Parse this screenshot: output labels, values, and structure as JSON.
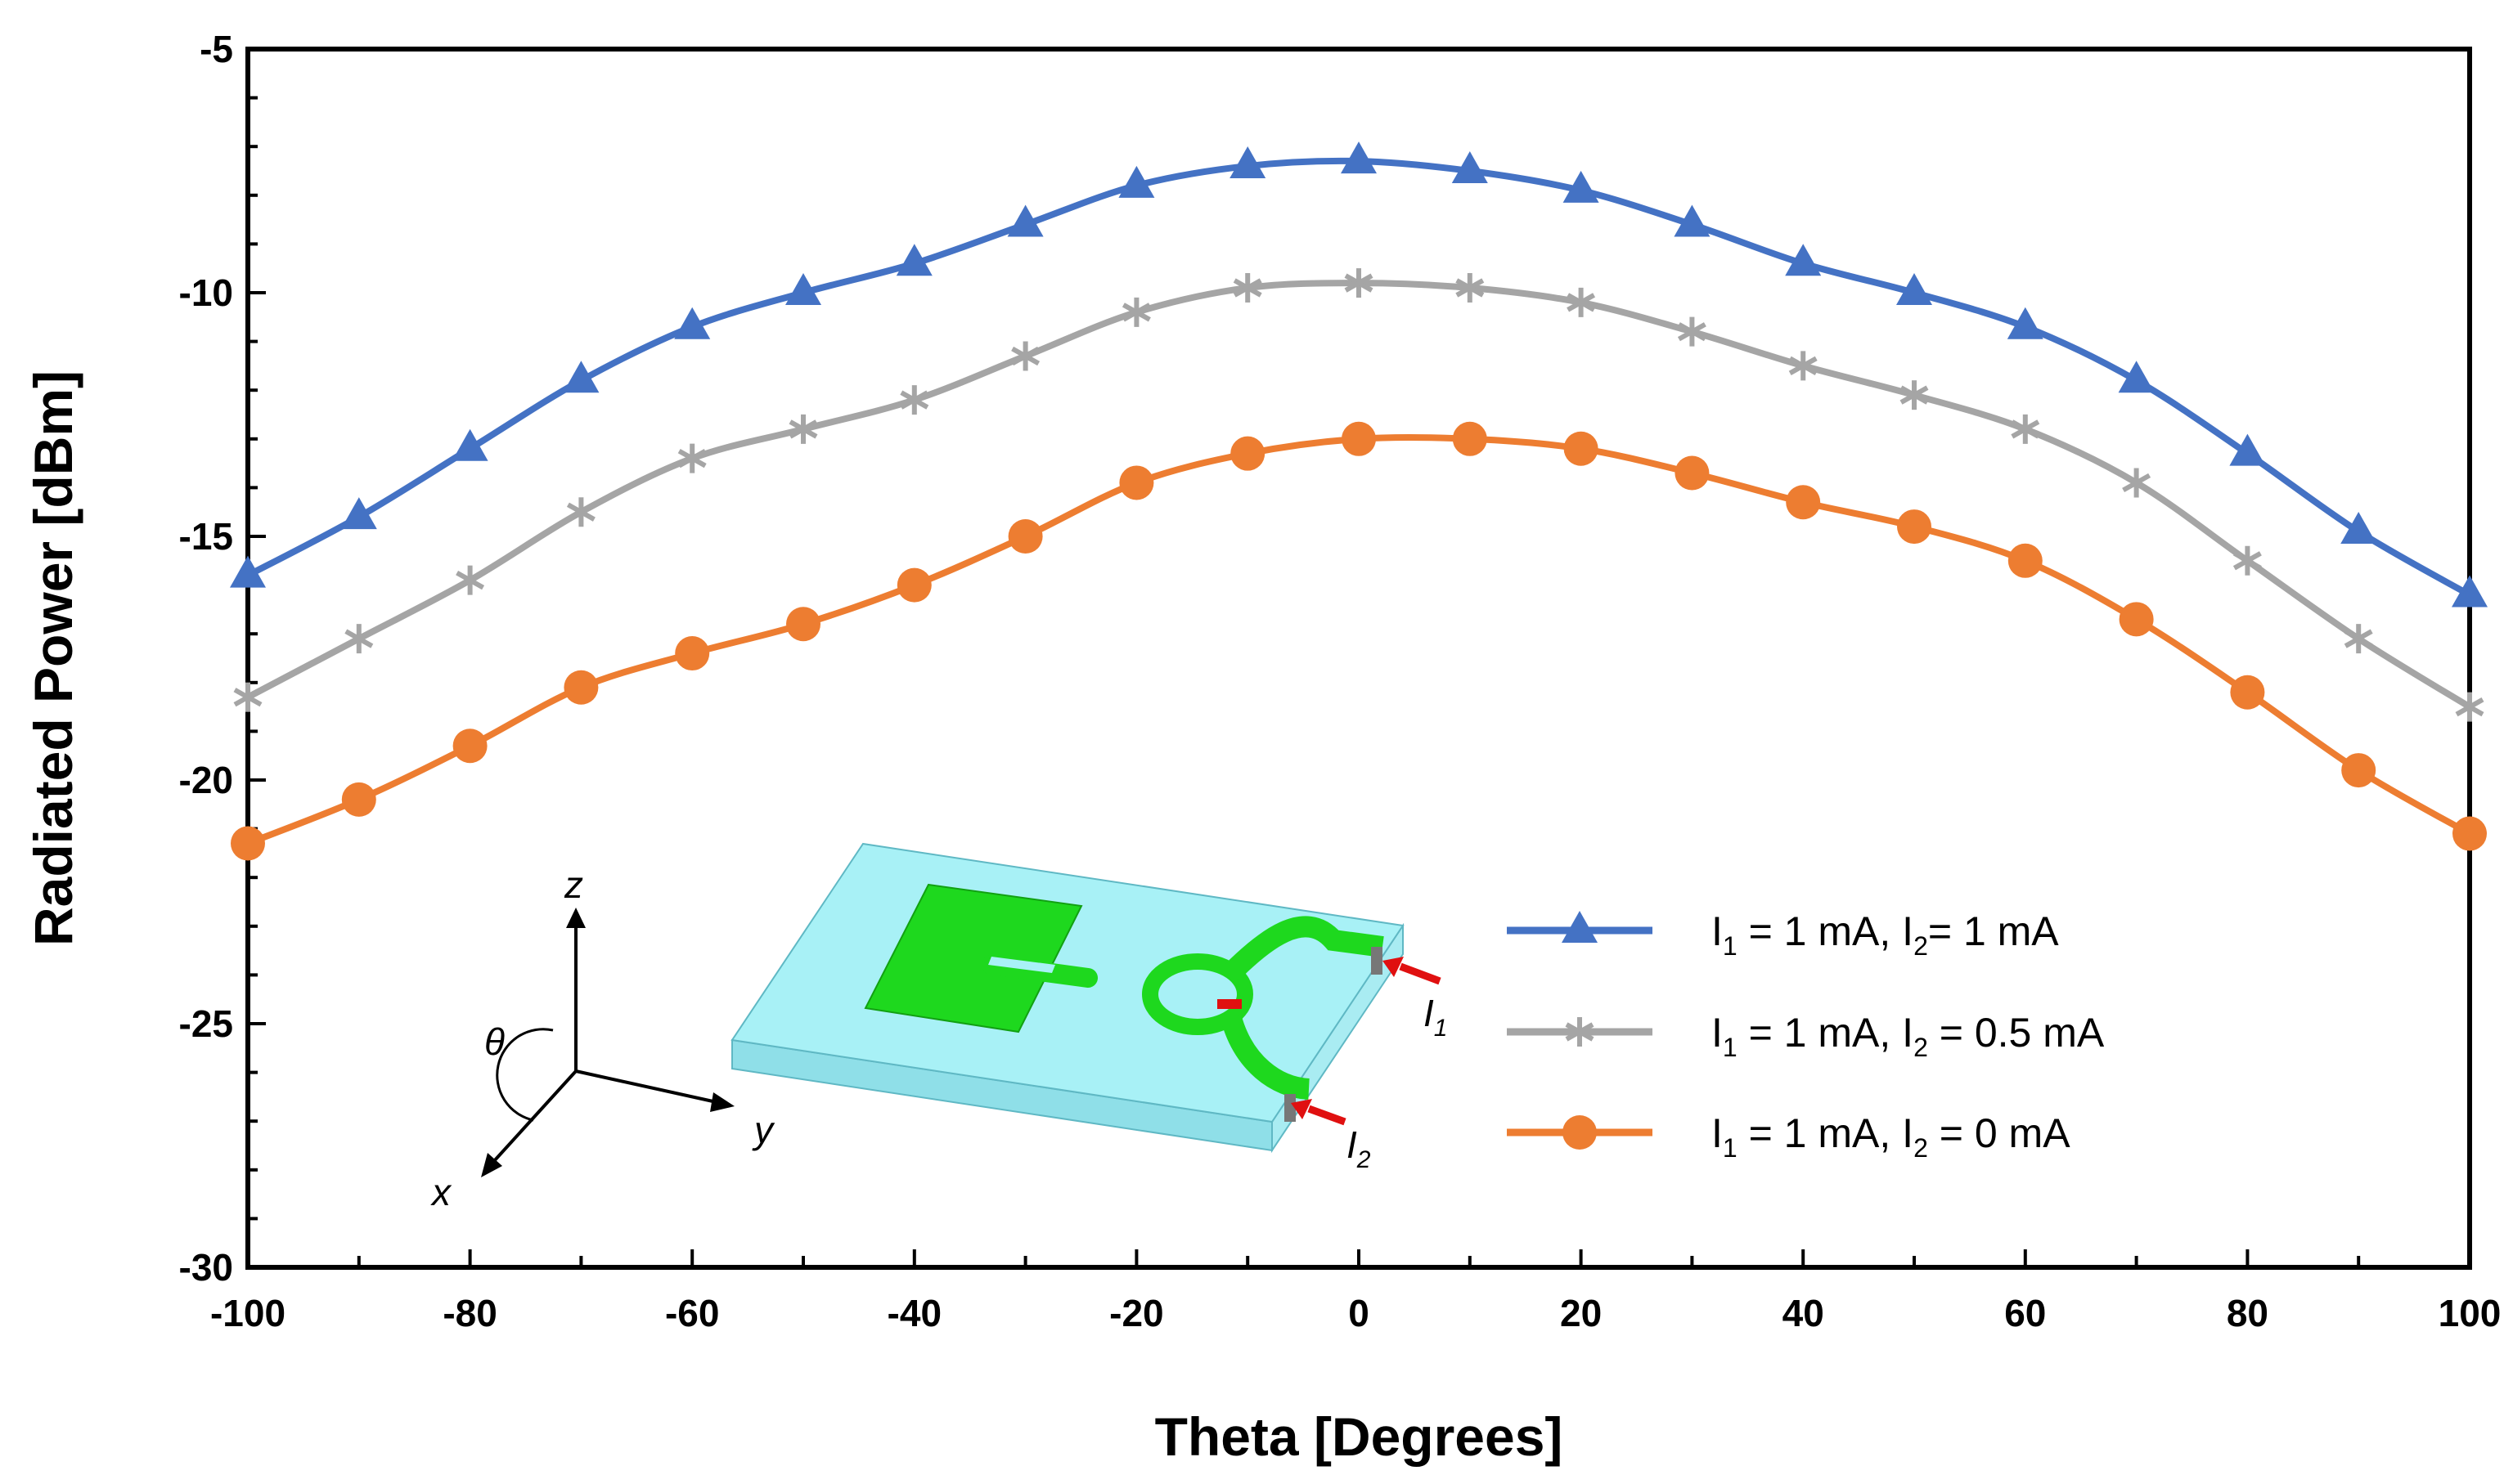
{
  "chart_data": {
    "type": "line",
    "title": "",
    "xlabel": "Theta [Degrees]",
    "ylabel": "Radiated Power [dBm]",
    "xlim": [
      -100,
      100
    ],
    "ylim": [
      -30,
      -5
    ],
    "x_ticks": [
      -100,
      -80,
      -60,
      -40,
      -20,
      0,
      20,
      40,
      60,
      80,
      100
    ],
    "y_ticks": [
      -5,
      -10,
      -15,
      -20,
      -25,
      -30
    ],
    "grid": false,
    "legend_position": "lower-right",
    "x": [
      -100,
      -90,
      -80,
      -70,
      -60,
      -50,
      -40,
      -30,
      -20,
      -10,
      0,
      10,
      20,
      30,
      40,
      50,
      60,
      70,
      80,
      90,
      100
    ],
    "series": [
      {
        "name": "I1 = 1 mA, I2= 1 mA",
        "legend": {
          "p1": "I",
          "s1": "1",
          "p2": " = 1 mA, I",
          "s2": "2",
          "p3": "= 1 mA"
        },
        "color": "#4472c4",
        "marker": "triangle",
        "values": [
          -15.8,
          -14.6,
          -13.2,
          -11.8,
          -10.7,
          -10.0,
          -9.4,
          -8.6,
          -7.8,
          -7.4,
          -7.3,
          -7.5,
          -7.9,
          -8.6,
          -9.4,
          -10.0,
          -10.7,
          -11.8,
          -13.3,
          -14.9,
          -16.2
        ]
      },
      {
        "name": "I1 = 1 mA, I2 = 0.5 mA",
        "legend": {
          "p1": "I",
          "s1": "1",
          "p2": " = 1 mA, I",
          "s2": "2",
          "p3": " = 0.5 mA"
        },
        "color": "#a5a5a5",
        "marker": "star",
        "values": [
          -18.3,
          -17.1,
          -15.9,
          -14.5,
          -13.4,
          -12.8,
          -12.2,
          -11.3,
          -10.4,
          -9.9,
          -9.8,
          -9.9,
          -10.2,
          -10.8,
          -11.5,
          -12.1,
          -12.8,
          -13.9,
          -15.5,
          -17.1,
          -18.5
        ]
      },
      {
        "name": "I1 = 1 mA, I2 = 0 mA",
        "legend": {
          "p1": "I",
          "s1": "1",
          "p2": " = 1 mA, I",
          "s2": "2",
          "p3": " = 0 mA"
        },
        "color": "#ed7d31",
        "marker": "circle",
        "values": [
          -21.3,
          -20.4,
          -19.3,
          -18.1,
          -17.4,
          -16.8,
          -16.0,
          -15.0,
          -13.9,
          -13.3,
          -13.0,
          -13.0,
          -13.2,
          -13.7,
          -14.3,
          -14.8,
          -15.5,
          -16.7,
          -18.2,
          -19.8,
          -21.1
        ]
      }
    ]
  },
  "inset": {
    "axis_z": "z",
    "axis_y": "y",
    "axis_x": "x",
    "angle": "θ",
    "port1": {
      "letter": "I",
      "sub": "1"
    },
    "port2": {
      "letter": "I",
      "sub": "2"
    }
  }
}
